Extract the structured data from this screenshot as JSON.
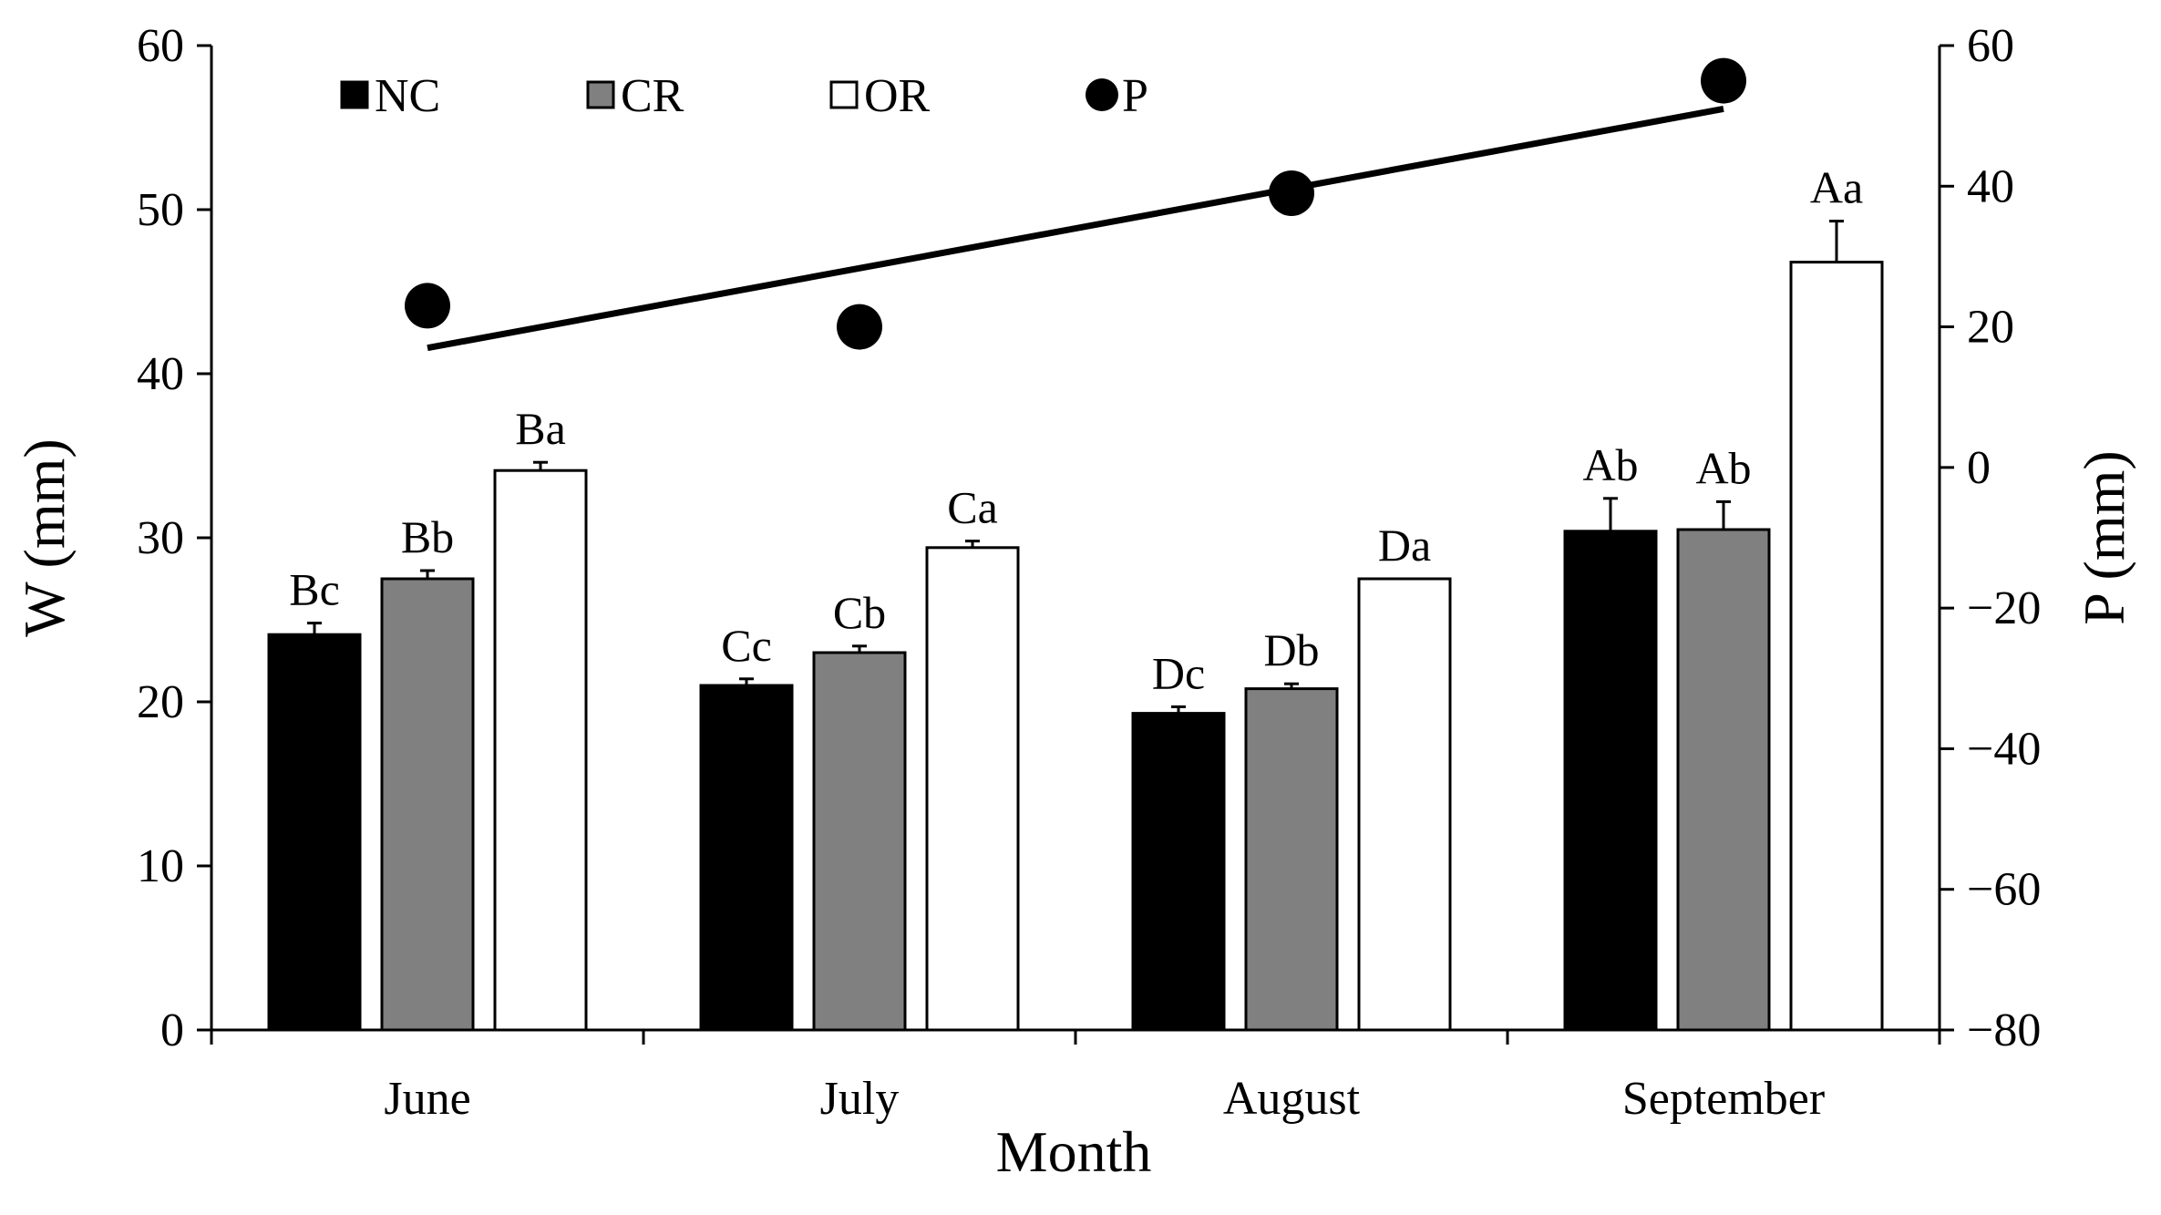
{
  "chart_data": {
    "type": "bar",
    "categories": [
      "June",
      "July",
      "August",
      "September"
    ],
    "xlabel": "Month",
    "ylabel": "W (mm)",
    "ylabel_right": "P (mm)",
    "ylim": [
      0,
      60
    ],
    "yticks": [
      0,
      10,
      20,
      30,
      40,
      50,
      60
    ],
    "ylim_right": [
      -80,
      60
    ],
    "yticks_right": [
      -80,
      -60,
      -40,
      -20,
      0,
      20,
      40,
      60
    ],
    "yticks_right_labels": [
      "−80",
      "−60",
      "−40",
      "−20",
      "0",
      "20",
      "40",
      "60"
    ],
    "legend_position": "top-left",
    "grid": false,
    "series": [
      {
        "name": "NC",
        "fill": "#000000",
        "values": [
          24.1,
          21.0,
          19.3,
          30.4
        ],
        "errors": [
          0.7,
          0.4,
          0.4,
          2.0
        ],
        "labels": [
          "Bc",
          "Cc",
          "Dc",
          "Ab"
        ]
      },
      {
        "name": "CR",
        "fill": "#808080",
        "values": [
          27.5,
          23.0,
          20.8,
          30.5
        ],
        "errors": [
          0.5,
          0.4,
          0.3,
          1.7
        ],
        "labels": [
          "Bb",
          "Cb",
          "Db",
          "Ab"
        ]
      },
      {
        "name": "OR",
        "fill": "#ffffff",
        "values": [
          34.1,
          29.4,
          27.5,
          46.8
        ],
        "errors": [
          0.5,
          0.4,
          0.0,
          2.5
        ],
        "labels": [
          "Ba",
          "Ca",
          "Da",
          "Aa"
        ]
      }
    ],
    "points": {
      "name": "P",
      "axis": "right",
      "values": [
        23,
        20,
        39,
        55
      ]
    },
    "trendline": {
      "axis": "right",
      "start": 17,
      "end": 51
    }
  }
}
